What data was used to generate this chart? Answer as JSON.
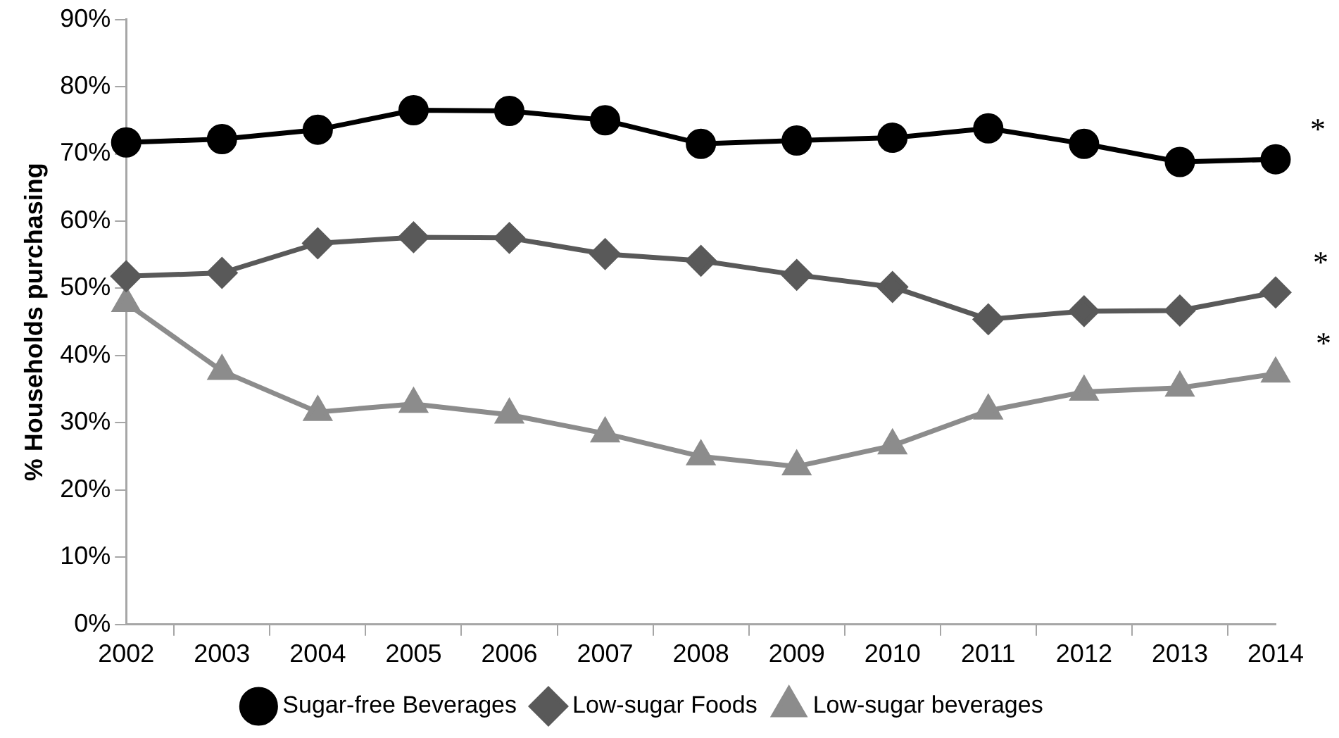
{
  "chart_data": {
    "type": "line",
    "ylabel": "% Households purchasing",
    "categories": [
      "2002",
      "2003",
      "2004",
      "2005",
      "2006",
      "2007",
      "2008",
      "2009",
      "2010",
      "2011",
      "2012",
      "2013",
      "2014"
    ],
    "series": [
      {
        "name": "Sugar-free Beverages",
        "color": "#000000",
        "marker": "circle",
        "values": [
          71.7,
          72.2,
          73.6,
          76.5,
          76.4,
          75.0,
          71.5,
          72.0,
          72.4,
          73.8,
          71.5,
          68.8,
          69.2
        ]
      },
      {
        "name": "Low-sugar Foods",
        "color": "#595959",
        "marker": "diamond",
        "values": [
          51.8,
          52.3,
          56.7,
          57.6,
          57.5,
          55.1,
          54.1,
          52.0,
          50.2,
          45.4,
          46.6,
          46.7,
          49.4
        ]
      },
      {
        "name": "Low-sugar beverages",
        "color": "#8c8c8c",
        "marker": "triangle",
        "values": [
          47.8,
          37.7,
          31.6,
          32.8,
          31.2,
          28.4,
          25.0,
          23.5,
          26.6,
          31.8,
          34.6,
          35.2,
          37.3
        ]
      }
    ],
    "annotations": [
      "*",
      "*",
      "*"
    ],
    "ylim": [
      0,
      90
    ],
    "yticks": [
      {
        "value": 0,
        "label": "0%"
      },
      {
        "value": 10,
        "label": "10%"
      },
      {
        "value": 20,
        "label": "20%"
      },
      {
        "value": 30,
        "label": "30%"
      },
      {
        "value": 40,
        "label": "40%"
      },
      {
        "value": 50,
        "label": "50%"
      },
      {
        "value": 60,
        "label": "60%"
      },
      {
        "value": 70,
        "label": "70%"
      },
      {
        "value": 80,
        "label": "80%"
      },
      {
        "value": 90,
        "label": "90%"
      }
    ],
    "grid": false,
    "legend": "bottom",
    "line_style": "solid"
  }
}
